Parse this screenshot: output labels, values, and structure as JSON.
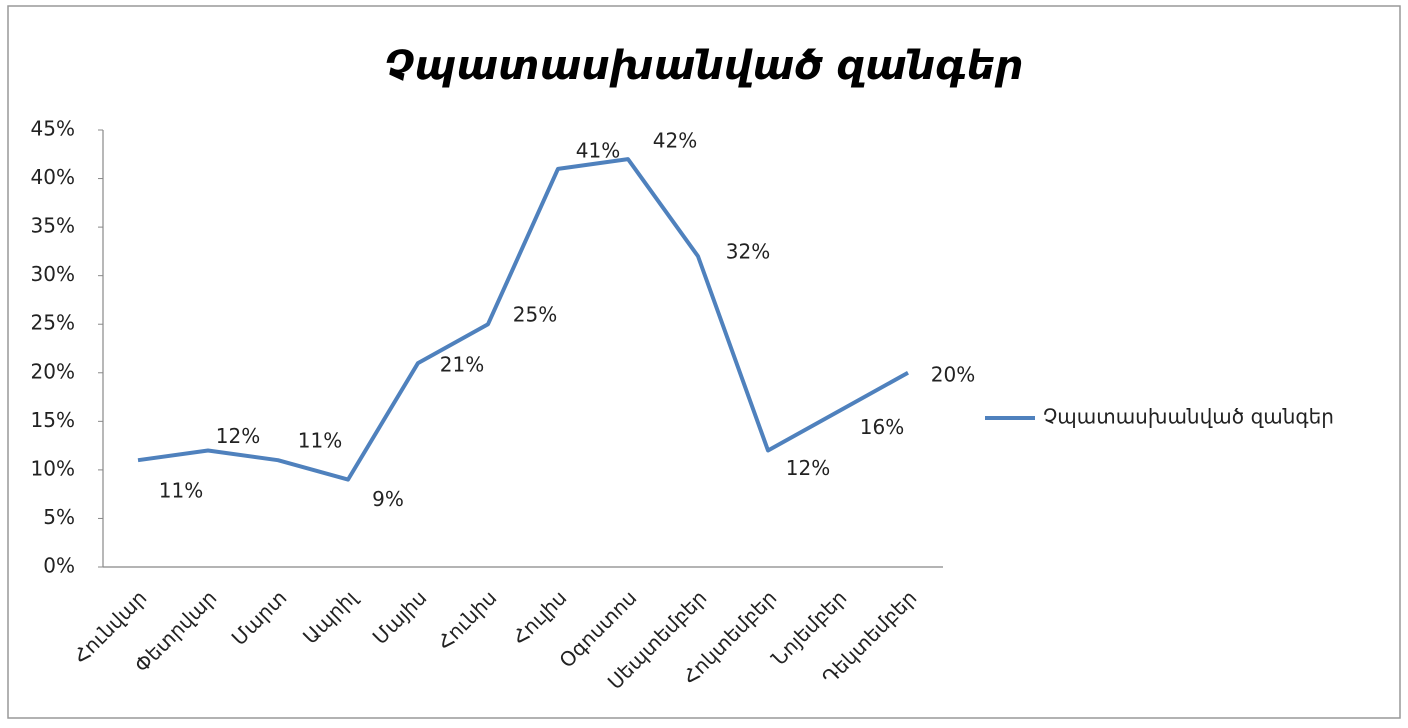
{
  "chart_data": {
    "type": "line",
    "title": "Չպատասխանված զանգեր",
    "categories": [
      "Հունվար",
      "Փետրվար",
      "Մարտ",
      "Ապրիլ",
      "Մայիս",
      "Հունիս",
      "Հուլիս",
      "Օգոստոս",
      "Սեպտեմբեր",
      "Հոկտեմբեր",
      "Նոյեմբեր",
      "Դեկտեմբեր"
    ],
    "series": [
      {
        "name": "Չպատասխանված զանգեր",
        "color": "#4f81bd",
        "values": [
          11,
          12,
          11,
          9,
          21,
          25,
          41,
          42,
          32,
          12,
          16,
          20
        ],
        "value_labels": [
          "11%",
          "12%",
          "11%",
          "9%",
          "21%",
          "25%",
          "41%",
          "42%",
          "32%",
          "12%",
          "16%",
          "20%"
        ]
      }
    ],
    "ylim": [
      0,
      45
    ],
    "yticks": [
      {
        "value": 0,
        "label": "0%"
      },
      {
        "value": 5,
        "label": "5%"
      },
      {
        "value": 10,
        "label": "10%"
      },
      {
        "value": 15,
        "label": "15%"
      },
      {
        "value": 20,
        "label": "20%"
      },
      {
        "value": 25,
        "label": "25%"
      },
      {
        "value": 30,
        "label": "30%"
      },
      {
        "value": 35,
        "label": "35%"
      },
      {
        "value": 40,
        "label": "40%"
      },
      {
        "value": 45,
        "label": "45%"
      }
    ],
    "grid": false,
    "legend": "right"
  }
}
